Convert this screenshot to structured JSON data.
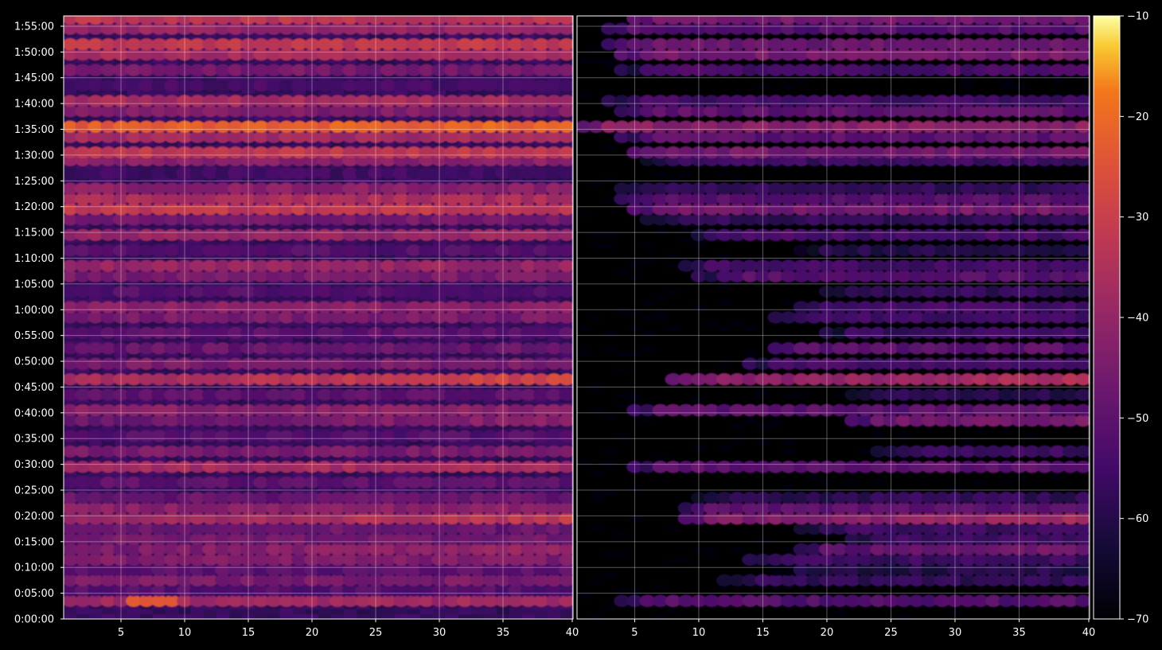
{
  "chart_data": {
    "type": "heatmap",
    "colormap": "inferno",
    "background": "#000000",
    "grid": true,
    "y_tick_labels": [
      "0:00:00",
      "0:05:00",
      "0:10:00",
      "0:15:00",
      "0:20:00",
      "0:25:00",
      "0:30:00",
      "0:35:00",
      "0:40:00",
      "0:45:00",
      "0:50:00",
      "0:55:00",
      "1:00:00",
      "1:05:00",
      "1:10:00",
      "1:15:00",
      "1:20:00",
      "1:25:00",
      "1:30:00",
      "1:35:00",
      "1:40:00",
      "1:45:00",
      "1:50:00",
      "1:55:00"
    ],
    "y_range_minutes": [
      0,
      117
    ],
    "panels": [
      {
        "x_range": [
          1,
          40
        ],
        "x_tick_labels": [
          "5",
          "10",
          "15",
          "20",
          "25",
          "30",
          "35",
          "40"
        ],
        "x_tick_values": [
          5,
          10,
          15,
          20,
          25,
          30,
          35,
          40
        ],
        "floor_db": -57,
        "rows": [
          {
            "minute": 3.5,
            "db": -38,
            "peak_x": [
              6,
              9
            ],
            "peak_db": -24
          },
          {
            "minute": 5.5,
            "db": -52
          },
          {
            "minute": 7.5,
            "db": -45
          },
          {
            "minute": 9.5,
            "db": -50
          },
          {
            "minute": 11.5,
            "db": -44
          },
          {
            "minute": 13.5,
            "db": -42,
            "trend": 0.35
          },
          {
            "minute": 15.5,
            "db": -46
          },
          {
            "minute": 17.5,
            "db": -48
          },
          {
            "minute": 19.5,
            "db": -36,
            "trend": 0.4
          },
          {
            "minute": 21.5,
            "db": -42
          },
          {
            "minute": 23.5,
            "db": -48
          },
          {
            "minute": 26.5,
            "db": -50
          },
          {
            "minute": 29.5,
            "db": -37
          },
          {
            "minute": 32.5,
            "db": -45
          },
          {
            "minute": 35.5,
            "db": -52
          },
          {
            "minute": 38.5,
            "db": -45,
            "trend": 0.3
          },
          {
            "minute": 40.5,
            "db": -42
          },
          {
            "minute": 43.5,
            "db": -50
          },
          {
            "minute": 46.5,
            "db": -33,
            "trend": 0.45
          },
          {
            "minute": 49.5,
            "db": -45
          },
          {
            "minute": 52.5,
            "db": -48
          },
          {
            "minute": 55.5,
            "db": -50
          },
          {
            "minute": 58.5,
            "db": -45
          },
          {
            "minute": 60.5,
            "db": -42
          },
          {
            "minute": 63.5,
            "db": -52
          },
          {
            "minute": 66.5,
            "db": -45
          },
          {
            "minute": 68.5,
            "db": -40
          },
          {
            "minute": 71.5,
            "db": -52
          },
          {
            "minute": 74.5,
            "db": -40
          },
          {
            "minute": 77.5,
            "db": -46
          },
          {
            "minute": 79.5,
            "db": -32
          },
          {
            "minute": 81.5,
            "db": -36
          },
          {
            "minute": 83.5,
            "db": -42
          },
          {
            "minute": 86.5,
            "db": -55
          },
          {
            "minute": 89.0,
            "db": -42
          },
          {
            "minute": 90.5,
            "db": -32
          },
          {
            "minute": 93.5,
            "db": -38
          },
          {
            "minute": 95.5,
            "db": -22,
            "trend": 0.1
          },
          {
            "minute": 98.5,
            "db": -44
          },
          {
            "minute": 100.5,
            "db": -37
          },
          {
            "minute": 103.5,
            "db": -54
          },
          {
            "minute": 106.5,
            "db": -46
          },
          {
            "minute": 109.5,
            "db": -37
          },
          {
            "minute": 111.5,
            "db": -32
          },
          {
            "minute": 114.5,
            "db": -40
          },
          {
            "minute": 116.5,
            "db": -33
          }
        ]
      },
      {
        "x_range": [
          1,
          40
        ],
        "x_tick_labels": [
          "5",
          "10",
          "15",
          "20",
          "25",
          "30",
          "35",
          "40"
        ],
        "x_tick_values": [
          5,
          10,
          15,
          20,
          25,
          30,
          35,
          40
        ],
        "floor_db": -70,
        "rows": [
          {
            "minute": 3.5,
            "db": -52,
            "x_start": 4
          },
          {
            "minute": 7.5,
            "db": -58,
            "x_start": 12
          },
          {
            "minute": 9.5,
            "db": -60,
            "x_start": 16
          },
          {
            "minute": 11.5,
            "db": -56,
            "x_start": 14
          },
          {
            "minute": 13.5,
            "db": -50,
            "x_start": 18,
            "trend": 0.4
          },
          {
            "minute": 15.5,
            "db": -55,
            "x_start": 22
          },
          {
            "minute": 17.5,
            "db": -56,
            "x_start": 18
          },
          {
            "minute": 19.5,
            "db": -42,
            "x_start": 9,
            "trend": 0.45
          },
          {
            "minute": 21.5,
            "db": -50,
            "x_start": 9
          },
          {
            "minute": 23.5,
            "db": -58,
            "x_start": 10
          },
          {
            "minute": 29.5,
            "db": -50,
            "x_start": 5
          },
          {
            "minute": 32.5,
            "db": -56,
            "x_start": 24
          },
          {
            "minute": 38.5,
            "db": -48,
            "x_start": 22,
            "trend": 0.3
          },
          {
            "minute": 40.5,
            "db": -50,
            "x_start": 5
          },
          {
            "minute": 43.5,
            "db": -60,
            "x_start": 22
          },
          {
            "minute": 46.5,
            "db": -40,
            "x_start": 8,
            "trend": 0.5
          },
          {
            "minute": 49.5,
            "db": -54,
            "x_start": 14
          },
          {
            "minute": 52.5,
            "db": -50,
            "x_start": 16
          },
          {
            "minute": 55.5,
            "db": -56,
            "x_start": 20
          },
          {
            "minute": 58.5,
            "db": -55,
            "x_start": 16
          },
          {
            "minute": 60.5,
            "db": -55,
            "x_start": 18
          },
          {
            "minute": 63.5,
            "db": -58,
            "x_start": 20
          },
          {
            "minute": 66.5,
            "db": -52,
            "x_start": 10
          },
          {
            "minute": 68.5,
            "db": -55,
            "x_start": 9
          },
          {
            "minute": 71.5,
            "db": -60,
            "x_start": 18
          },
          {
            "minute": 74.5,
            "db": -54,
            "x_start": 10
          },
          {
            "minute": 77.5,
            "db": -58,
            "x_start": 6
          },
          {
            "minute": 79.5,
            "db": -46,
            "x_start": 5
          },
          {
            "minute": 81.5,
            "db": -52,
            "x_start": 4
          },
          {
            "minute": 83.5,
            "db": -58,
            "x_start": 4
          },
          {
            "minute": 89.0,
            "db": -56,
            "x_start": 6
          },
          {
            "minute": 90.5,
            "db": -46,
            "x_start": 5
          },
          {
            "minute": 93.5,
            "db": -50,
            "x_start": 4
          },
          {
            "minute": 95.5,
            "db": -42,
            "x_start": 1
          },
          {
            "minute": 98.5,
            "db": -50,
            "x_start": 4
          },
          {
            "minute": 100.5,
            "db": -55,
            "x_start": 3
          },
          {
            "minute": 106.5,
            "db": -54,
            "x_start": 4
          },
          {
            "minute": 109.5,
            "db": -46,
            "x_start": 4
          },
          {
            "minute": 111.5,
            "db": -48,
            "x_start": 3
          },
          {
            "minute": 114.5,
            "db": -52,
            "x_start": 3
          },
          {
            "minute": 116.5,
            "db": -46,
            "x_start": 5
          }
        ]
      }
    ],
    "colorbar": {
      "range": [
        -70,
        -10
      ],
      "tick_labels": [
        "−10",
        "−20",
        "−30",
        "−40",
        "−50",
        "−60",
        "−70"
      ],
      "tick_values": [
        -10,
        -20,
        -30,
        -40,
        -50,
        -60,
        -70
      ]
    }
  }
}
